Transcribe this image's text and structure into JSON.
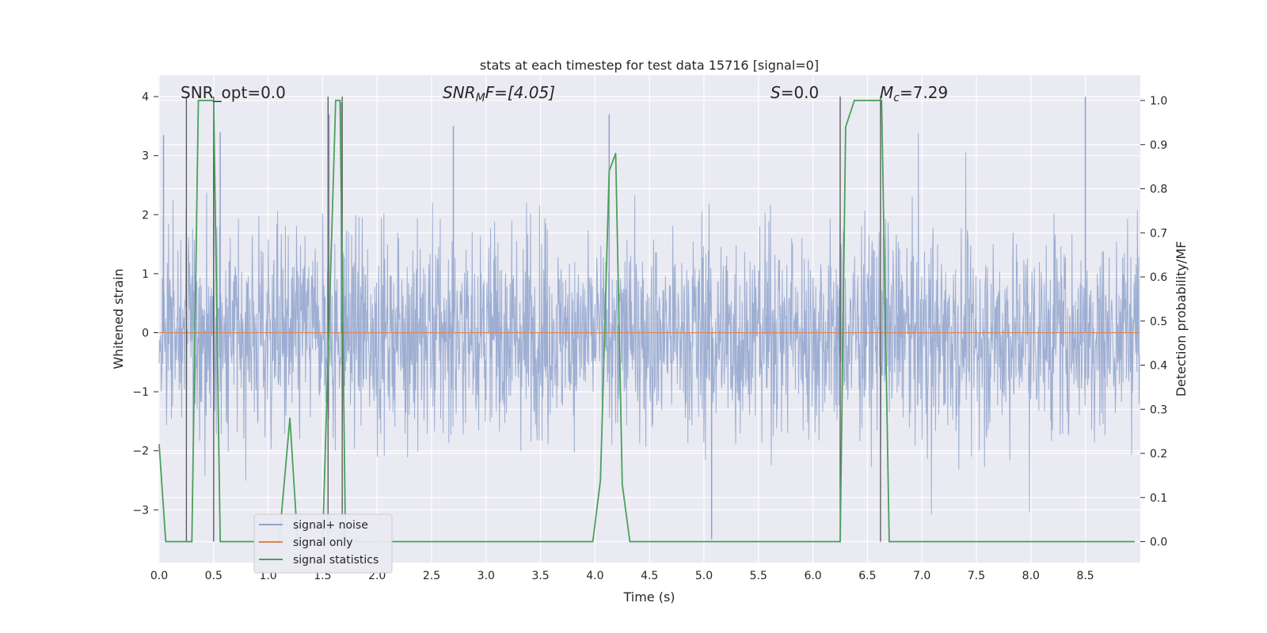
{
  "chart_data": {
    "type": "line",
    "title": "stats at each timestep for test data 15716 [signal=0]",
    "xlabel": "Time (s)",
    "ylabel": "Whitened strain",
    "ylabel_right": "Detection probability/MF",
    "xlim": [
      0.0,
      9.0
    ],
    "ylim": [
      -3.9,
      4.35
    ],
    "ylim_right": [
      -0.047,
      1.05
    ],
    "x_ticks": [
      "0.0",
      "0.5",
      "1.0",
      "1.5",
      "2.0",
      "2.5",
      "3.0",
      "3.5",
      "4.0",
      "4.5",
      "5.0",
      "5.5",
      "6.0",
      "6.5",
      "7.0",
      "7.5",
      "8.0",
      "8.5"
    ],
    "y_ticks": [
      "4",
      "3",
      "2",
      "1",
      "0",
      "−1",
      "−2",
      "−3"
    ],
    "y_ticks_right": [
      "1.0",
      "0.9",
      "0.8",
      "0.7",
      "0.6",
      "0.5",
      "0.4",
      "0.3",
      "0.2",
      "0.1",
      "0.0"
    ],
    "grid": true,
    "legend_position": "lower-left",
    "annotations": {
      "snr_opt": "SNR_opt=0.0",
      "snr_mf_main": "SNR",
      "snr_mf_sub": "M",
      "snr_mf_rest": "F=[4.05]",
      "s_var": "S",
      "s_rest": "=0.0",
      "mc_var": "M",
      "mc_sub": "c",
      "mc_rest": "=7.29"
    },
    "series": [
      {
        "name": "signal+ noise",
        "color": "#8fa3cc",
        "description_values": "noise band roughly between -2 and 2 with spikes up to about 4 and down to about -3.5",
        "spike_peaks": [
          [
            0.04,
            3.35
          ],
          [
            0.5,
            3.6
          ],
          [
            0.56,
            3.4
          ],
          [
            1.56,
            3.7
          ],
          [
            1.67,
            3.9
          ],
          [
            2.7,
            3.5
          ],
          [
            4.13,
            3.7
          ],
          [
            5.07,
            -3.5
          ],
          [
            8.5,
            4.0
          ]
        ]
      },
      {
        "name": "signal only",
        "color": "#dd8452",
        "x": [
          0.0,
          9.0
        ],
        "y": [
          0.0,
          0.0
        ]
      },
      {
        "name": "signal statistics",
        "color": "#4aa05a",
        "x": [
          0.0,
          0.06,
          0.15,
          0.24,
          0.3,
          0.36,
          0.44,
          0.5,
          0.56,
          0.6,
          0.66,
          1.1,
          1.2,
          1.27,
          1.35,
          1.5,
          1.62,
          1.66,
          1.71,
          1.76,
          1.8,
          3.9,
          3.98,
          4.05,
          4.13,
          4.19,
          4.25,
          4.32,
          4.4,
          6.25,
          6.3,
          6.38,
          6.45,
          6.55,
          6.63,
          6.7,
          6.72,
          8.95
        ],
        "y": [
          0.22,
          0.0,
          0.0,
          0.0,
          0.0,
          1.0,
          1.0,
          1.0,
          0.0,
          0.0,
          0.0,
          0.0,
          0.28,
          0.0,
          0.0,
          0.0,
          1.0,
          1.0,
          0.0,
          0.0,
          0.0,
          0.0,
          0.0,
          0.14,
          0.84,
          0.88,
          0.13,
          0.0,
          0.0,
          0.0,
          0.94,
          1.0,
          1.0,
          1.0,
          1.0,
          0.0,
          0.0,
          0.0
        ]
      }
    ],
    "vertical_markers": [
      0.25,
      0.5,
      1.55,
      1.68,
      6.25,
      6.62
    ]
  },
  "legend": {
    "items": [
      {
        "label": "signal+ noise",
        "color": "#8fa3cc"
      },
      {
        "label": "signal only",
        "color": "#dd8452"
      },
      {
        "label": "signal statistics",
        "color": "#4aa05a"
      }
    ]
  },
  "colors": {
    "plot_background": "#eaeaf2",
    "grid": "#ffffff",
    "noise": "#8fa3cc",
    "signal": "#dd8452",
    "statistics": "#4aa05a",
    "marker": "#555555"
  }
}
